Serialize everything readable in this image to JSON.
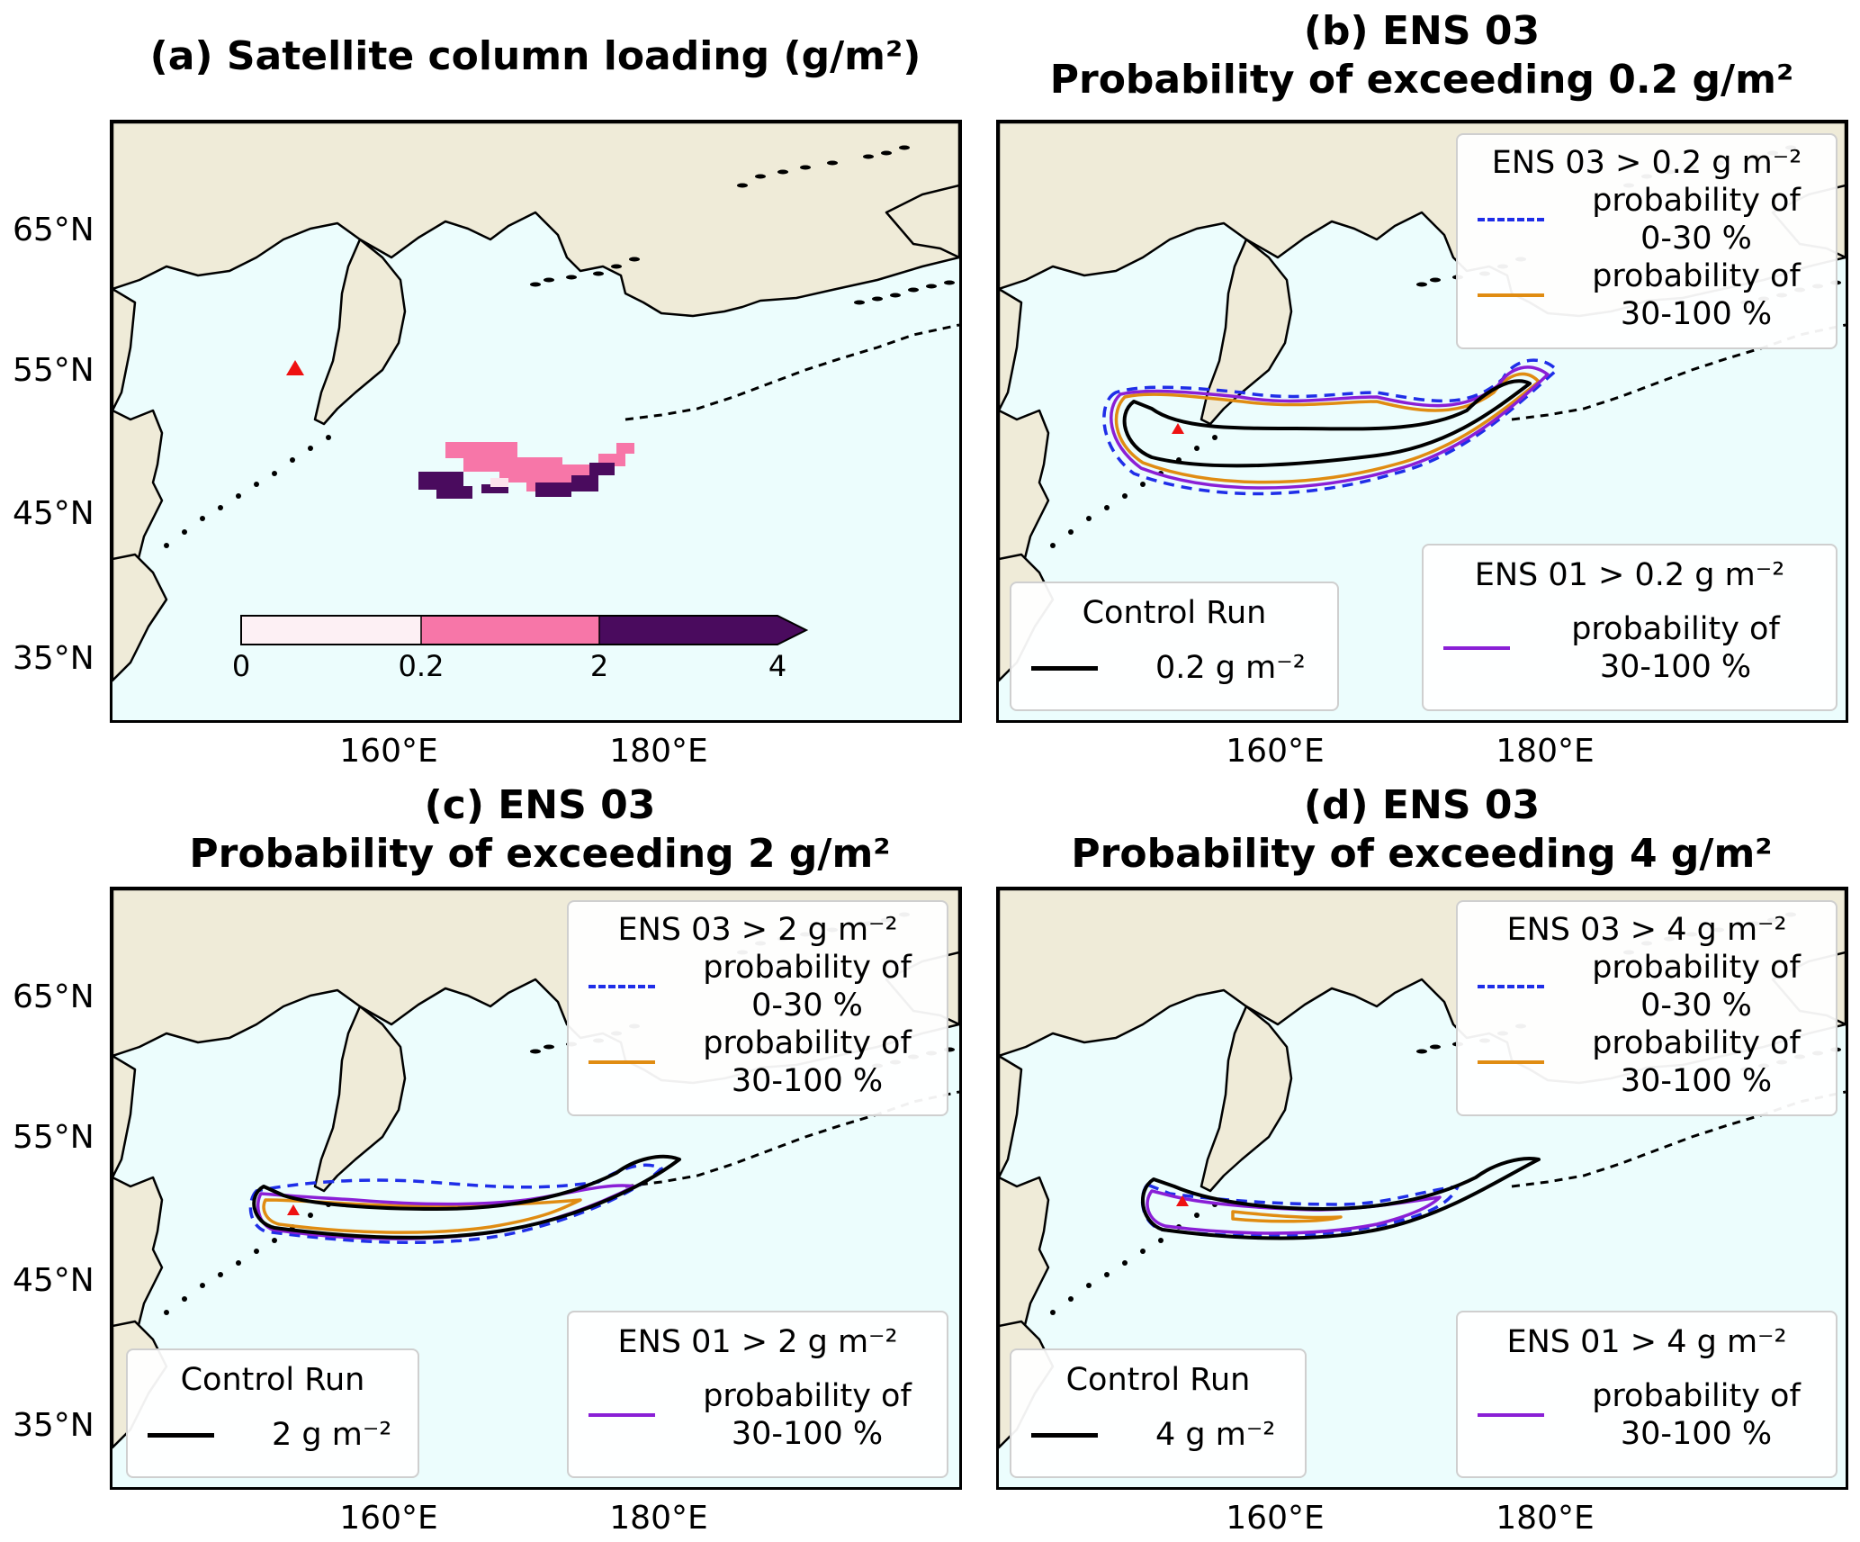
{
  "panels": [
    {
      "id": "a",
      "title_lines": [
        "(a) Satellite column loading (g/m²)"
      ]
    },
    {
      "id": "b",
      "title_lines": [
        "(b) ENS 03",
        "Probability of exceeding 0.2 g/m²"
      ]
    },
    {
      "id": "c",
      "title_lines": [
        "(c) ENS 03",
        "Probability of exceeding 2 g/m²"
      ]
    },
    {
      "id": "d",
      "title_lines": [
        "(d) ENS 03",
        "Probability of exceeding 4 g/m²"
      ]
    }
  ],
  "axes": {
    "lat_ticks": [
      "65°N",
      "55°N",
      "45°N",
      "35°N"
    ],
    "lon_ticks": [
      "160°E",
      "180°E"
    ]
  },
  "colorbar": {
    "ticks": [
      "0",
      "0.2",
      "2",
      "4"
    ],
    "colors": [
      "#fdf0f4",
      "#f776a8",
      "#4a0b5e"
    ],
    "extend": "max"
  },
  "legends": {
    "b": {
      "ens03_title": "ENS 03 > 0.2 g m⁻²",
      "ens03_rows": [
        [
          "probability of",
          "0-30 %"
        ],
        [
          "probability of",
          "30-100 %"
        ]
      ],
      "control_title": "Control Run",
      "control_label": "0.2  g m⁻²",
      "ens01_title": "ENS 01 > 0.2 g m⁻²",
      "ens01_rows": [
        [
          "probability of",
          "30-100 %"
        ]
      ]
    },
    "c": {
      "ens03_title": "ENS 03 >  2 g m⁻²",
      "ens03_rows": [
        [
          "probability of",
          "0-30 %"
        ],
        [
          "probability of",
          "30-100 %"
        ]
      ],
      "control_title": "Control Run",
      "control_label": "2  g m⁻²",
      "ens01_title": "ENS 01 > 2 g m⁻²",
      "ens01_rows": [
        [
          "probability of",
          "30-100 %"
        ]
      ]
    },
    "d": {
      "ens03_title": "ENS 03 >  4 g m⁻²",
      "ens03_rows": [
        [
          "probability of",
          "0-30 %"
        ],
        [
          "probability of",
          "30-100 %"
        ]
      ],
      "control_title": "Control Run",
      "control_label": "4  g m⁻²",
      "ens01_title": "ENS 01 > 4 g m⁻²",
      "ens01_rows": [
        [
          "probability of",
          "30-100 %"
        ]
      ]
    }
  },
  "colors": {
    "ocean": "#ecfdfd",
    "land": "#efebd8",
    "control": "#000000",
    "ens03_low": "#1f2ee8",
    "ens03_high": "#e08c12",
    "ens01_high": "#8a1fd6",
    "volcano": "#ee1111"
  }
}
